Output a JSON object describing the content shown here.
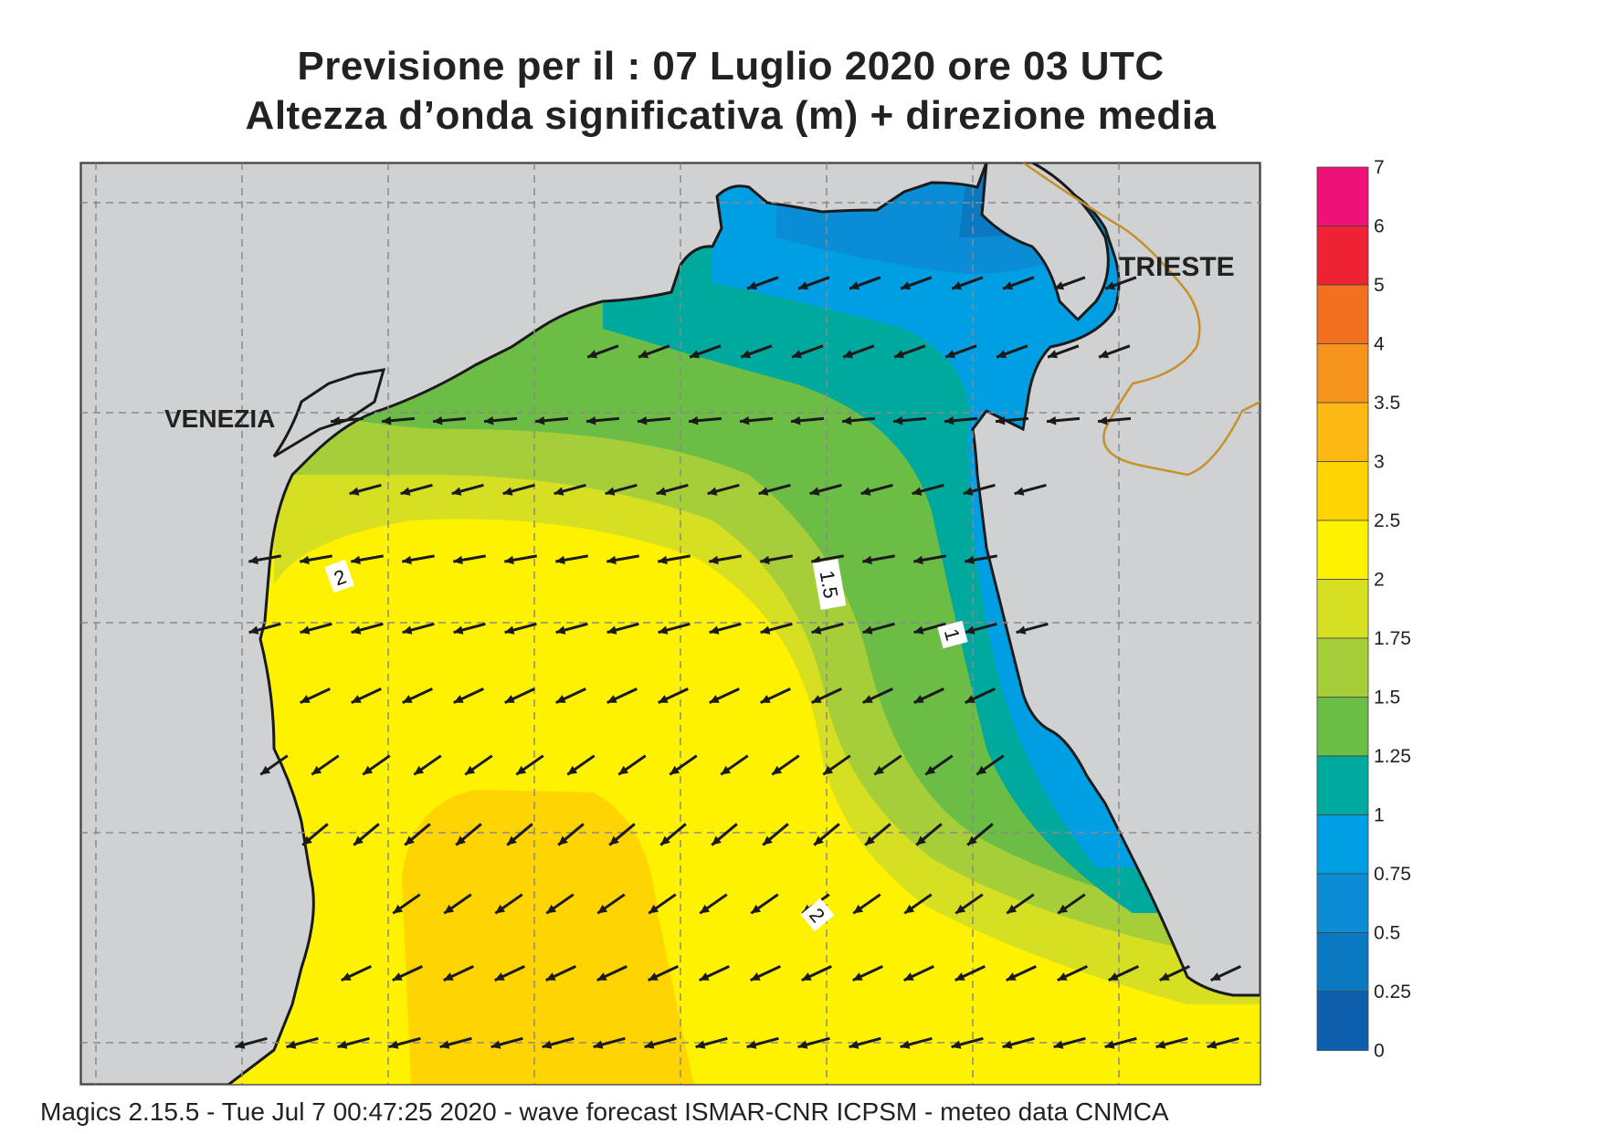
{
  "title": {
    "line1": "Previsione per il  :  07  Luglio   2020   ore 03 UTC",
    "line2": "Altezza d’onda significativa (m) + direzione media"
  },
  "cities": {
    "venezia": "VENEZIA",
    "trieste": "TRIESTE"
  },
  "contour_labels": [
    "2",
    "1.5",
    "1",
    "2"
  ],
  "colorbar": {
    "labels": [
      "7",
      "6",
      "5",
      "4",
      "3.5",
      "3",
      "2.5",
      "2",
      "1.75",
      "1.5",
      "1.25",
      "1",
      "0.75",
      "0.5",
      "0.25",
      "0"
    ],
    "colors": [
      "#ee1177",
      "#ee2233",
      "#f37021",
      "#f7941d",
      "#fdb813",
      "#ffd400",
      "#fff200",
      "#d7df23",
      "#a6ce39",
      "#6cbd45",
      "#00a99d",
      "#009fe3",
      "#0a8dd4",
      "#0b78c2",
      "#0d5fae"
    ]
  },
  "footer": "Magics 2.15.5 - Tue Jul  7 00:47:25 2020 - wave forecast  ISMAR-CNR  ICPSM - meteo data   CNMCA",
  "colors": {
    "land": "#cfd1d3",
    "coast": "#1a1a1a",
    "border": "#c8902a",
    "grid": "#8a8a8a",
    "arrow": "#1a1a1a"
  }
}
